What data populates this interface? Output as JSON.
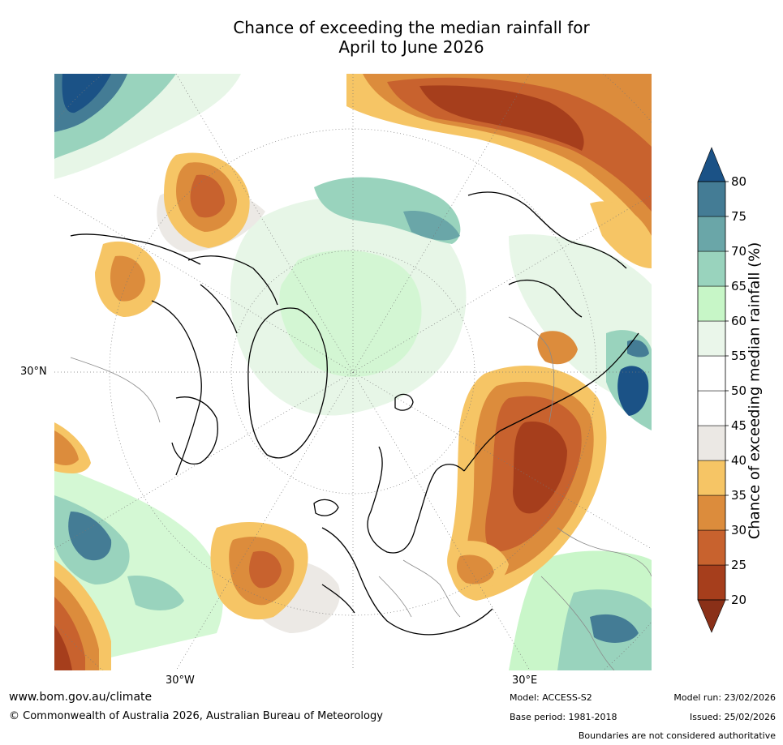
{
  "header": {
    "title_line1": "Chance of exceeding the median rainfall for",
    "title_line2": "April to June 2026"
  },
  "map": {
    "projection": "north-polar-stereographic",
    "lat_label_left": "30°N",
    "lon_label_left": "30°W",
    "lon_label_right": "30°E",
    "colors": {
      "p20_25": "#a63e1c",
      "p25_30": "#c8622e",
      "p30_35": "#dc8c3c",
      "p35_40": "#f6c565",
      "p40_45": "#ebe8e4",
      "p45_55": "#ffffff",
      "p55_60": "#e6f6e6",
      "p60_65": "#c7f6c7",
      "p65_70": "#99d3bd",
      "p70_75": "#6aa6a8",
      "p75_80": "#447c95",
      "p80_up": "#1b5286"
    }
  },
  "colorbar": {
    "label": "Chance of exceeding median rainfall (%)",
    "ticks": [
      "20",
      "25",
      "30",
      "35",
      "40",
      "45",
      "50",
      "55",
      "60",
      "65",
      "70",
      "75",
      "80"
    ],
    "segment_colors": [
      "#a63e1c",
      "#c8622e",
      "#dc8c3c",
      "#f6c565",
      "#ebe8e4",
      "#ffffff",
      "#ffffff",
      "#eaf6ea",
      "#c7f6c7",
      "#99d3bd",
      "#6aa6a8",
      "#447c95"
    ],
    "under_color": "#8a3018",
    "over_color": "#1b5286"
  },
  "footer": {
    "website": "www.bom.gov.au/climate",
    "copyright": "© Commonwealth of Australia 2026, Australian Bureau of Meteorology",
    "model": "Model: ACCESS-S2",
    "base_period": "Base period: 1981-2018",
    "model_run": "Model run: 23/02/2026",
    "issued": "Issued: 25/02/2026",
    "disclaimer": "Boundaries are not considered authoritative"
  }
}
